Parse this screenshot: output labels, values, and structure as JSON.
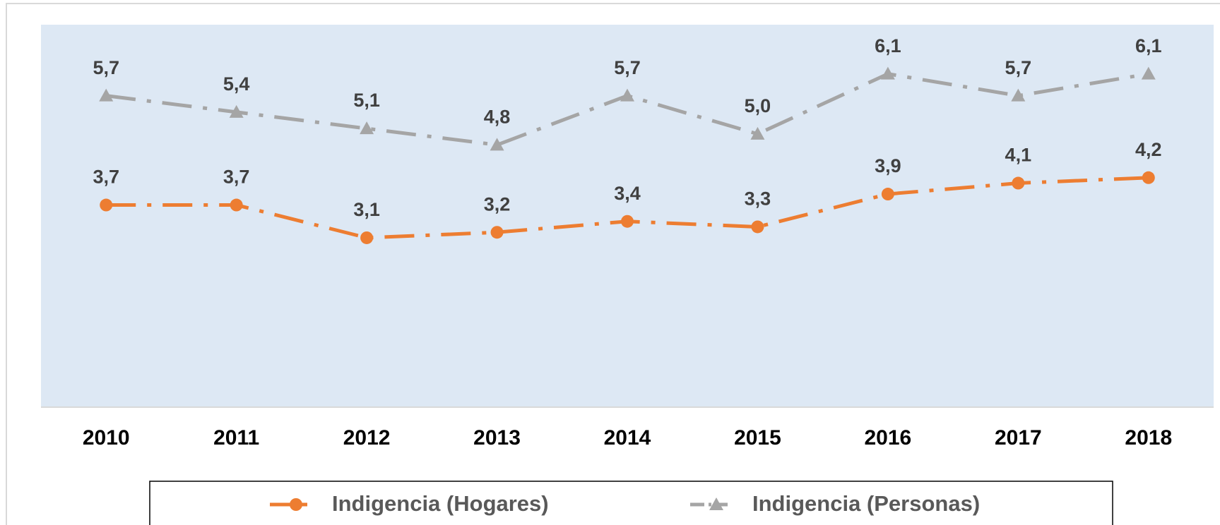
{
  "chart_data": {
    "type": "line",
    "categories": [
      "2010",
      "2011",
      "2012",
      "2013",
      "2014",
      "2015",
      "2016",
      "2017",
      "2018"
    ],
    "series": [
      {
        "name": "Indigencia (Hogares)",
        "color": "#ed7d31",
        "marker": "circle",
        "values": [
          3.7,
          3.7,
          3.1,
          3.2,
          3.4,
          3.3,
          3.9,
          4.1,
          4.2
        ],
        "value_labels": [
          "3,7",
          "3,7",
          "3,1",
          "3,2",
          "3,4",
          "3,3",
          "3,9",
          "4,1",
          "4,2"
        ]
      },
      {
        "name": "Indigencia (Personas)",
        "color": "#a5a5a5",
        "marker": "triangle",
        "values": [
          5.7,
          5.4,
          5.1,
          4.8,
          5.7,
          5.0,
          6.1,
          5.7,
          6.1
        ],
        "value_labels": [
          "5,7",
          "5,4",
          "5,1",
          "4,8",
          "5,7",
          "5,0",
          "6,1",
          "5,7",
          "6,1"
        ]
      }
    ],
    "ylim": [
      0,
      7
    ]
  }
}
